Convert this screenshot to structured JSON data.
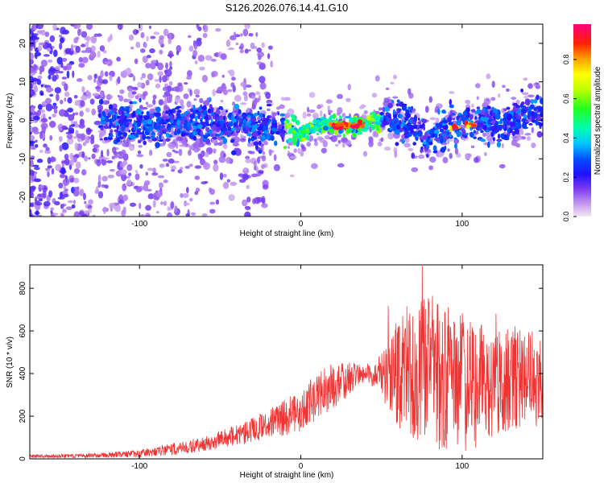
{
  "title": "S126.2026.076.14.41.G10",
  "chart_data": [
    {
      "type": "heatmap",
      "xlabel": "Height of straight line (km)",
      "ylabel": "Frequency (Hz)",
      "xlim": [
        -168,
        150
      ],
      "ylim": [
        -25,
        25
      ],
      "x_ticks": [
        -100,
        0,
        100
      ],
      "y_ticks": [
        -20,
        -10,
        0,
        10,
        20
      ],
      "colorbar": {
        "label": "Normalized spectral amplitude",
        "range": [
          0,
          0.98
        ],
        "ticks": [
          0.0,
          0.2,
          0.4,
          0.6,
          0.8
        ],
        "tick_labels": [
          "0.0",
          "0.2",
          "0.4",
          "0.6",
          "0.8"
        ],
        "colormap": [
          "#f0d8f0",
          "#a060e8",
          "#4020ff",
          "#0000ff",
          "#00a0ff",
          "#00ffff",
          "#00ff40",
          "#a0ff00",
          "#ffff00",
          "#ffa000",
          "#ff0000",
          "#ff0080"
        ]
      },
      "ridge": {
        "description_points": [
          {
            "x": -120,
            "y": -1
          },
          {
            "x": -80,
            "y": -1
          },
          {
            "x": -40,
            "y": -1
          },
          {
            "x": -20,
            "y": -2
          },
          {
            "x": 0,
            "y": -3
          },
          {
            "x": 15,
            "y": -1
          },
          {
            "x": 25,
            "y": -1.5
          },
          {
            "x": 40,
            "y": -1
          },
          {
            "x": 55,
            "y": 1
          },
          {
            "x": 70,
            "y": -2
          },
          {
            "x": 80,
            "y": -5
          },
          {
            "x": 95,
            "y": -1.5
          },
          {
            "x": 110,
            "y": -1
          },
          {
            "x": 125,
            "y": -1
          },
          {
            "x": 145,
            "y": 2
          }
        ],
        "peak_segment_km": [
          18,
          40
        ],
        "secondary_peak_segment_km": [
          92,
          108
        ]
      }
    },
    {
      "type": "line",
      "xlabel": "Height of straight line (km)",
      "ylabel": "SNR (10 * v/v)",
      "xlim": [
        -168,
        150
      ],
      "ylim": [
        0,
        910
      ],
      "x_ticks": [
        -100,
        0,
        100
      ],
      "y_ticks": [
        0,
        200,
        400,
        600,
        800
      ],
      "color": "#ee3333",
      "envelope": {
        "x": [
          -168,
          -140,
          -120,
          -100,
          -90,
          -80,
          -60,
          -40,
          -20,
          0,
          10,
          20,
          30,
          40,
          50,
          55,
          60,
          70,
          80,
          90,
          100,
          110,
          120,
          130,
          140,
          150
        ],
        "mean": [
          12,
          14,
          18,
          25,
          35,
          45,
          70,
          110,
          160,
          230,
          290,
          340,
          380,
          400,
          400,
          390,
          400,
          420,
          410,
          380,
          360,
          350,
          360,
          370,
          380,
          360
        ],
        "spread": [
          8,
          9,
          12,
          18,
          22,
          28,
          35,
          50,
          70,
          100,
          110,
          120,
          80,
          40,
          90,
          200,
          280,
          330,
          360,
          360,
          330,
          300,
          260,
          240,
          220,
          250
        ]
      }
    }
  ]
}
